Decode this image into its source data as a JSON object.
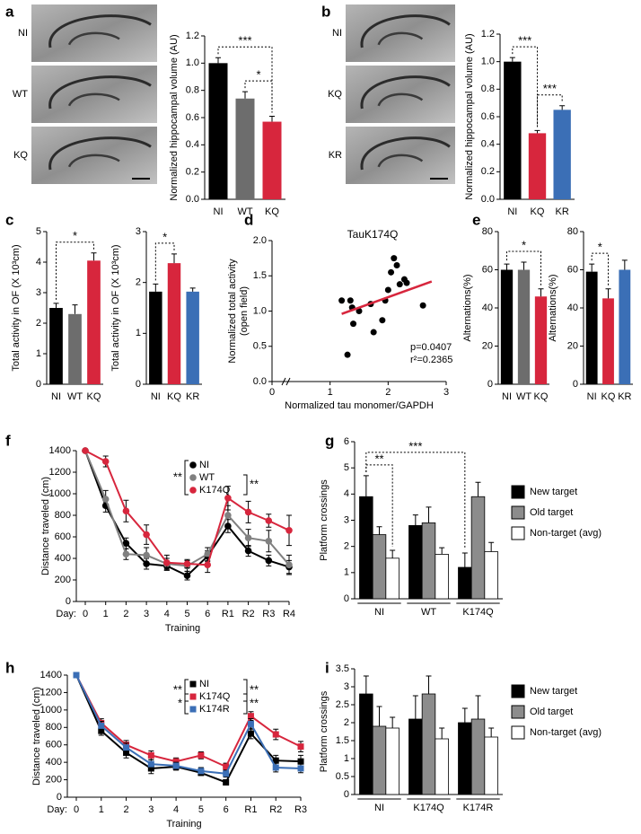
{
  "chart_data": [
    {
      "panel": "a",
      "type": "bar",
      "image_labels": [
        "NI",
        "WT",
        "KQ"
      ],
      "y_label": "Normalized hippocampal volume (AU)",
      "categories": [
        "NI",
        "WT",
        "KQ"
      ],
      "values": [
        1.0,
        0.74,
        0.57
      ],
      "errors": [
        0.04,
        0.05,
        0.04
      ],
      "colors": [
        "#000000",
        "#6d6d6d",
        "#d7263d"
      ],
      "ylim": [
        0,
        1.2
      ],
      "yticks": [
        {
          "value": 0,
          "label": "0.0"
        },
        0.2,
        0.4,
        0.6,
        0.8,
        {
          "value": 1,
          "label": "1.0"
        },
        1.2
      ],
      "significance": [
        {
          "label": "***",
          "between": [
            "NI",
            "KQ"
          ]
        },
        {
          "label": "*",
          "between": [
            "WT",
            "KQ"
          ]
        }
      ]
    },
    {
      "panel": "b",
      "type": "bar",
      "image_labels": [
        "NI",
        "KQ",
        "KR"
      ],
      "y_label": "Normalized hippocampal volume (AU)",
      "categories": [
        "NI",
        "KQ",
        "KR"
      ],
      "values": [
        1.0,
        0.48,
        0.65
      ],
      "errors": [
        0.03,
        0.02,
        0.03
      ],
      "colors": [
        "#000000",
        "#d7263d",
        "#3b6fb6"
      ],
      "ylim": [
        0,
        1.2
      ],
      "yticks": [
        {
          "value": 0,
          "label": "0.0"
        },
        0.2,
        0.4,
        0.6,
        0.8,
        {
          "value": 1,
          "label": "1.0"
        },
        1.2
      ],
      "significance": [
        {
          "label": "***",
          "between": [
            "NI",
            "KQ"
          ]
        },
        {
          "label": "***",
          "between": [
            "KQ",
            "KR"
          ]
        }
      ]
    },
    {
      "panel": "c",
      "type": "bar",
      "y_label": "Total activity in OF (X 10³cm)",
      "categories": [
        "NI",
        "WT",
        "KQ"
      ],
      "values": [
        2.5,
        2.3,
        4.05
      ],
      "errors": [
        0.15,
        0.3,
        0.25
      ],
      "colors": [
        "#000000",
        "#6d6d6d",
        "#d7263d"
      ],
      "ylim": [
        0,
        5
      ],
      "yticks": [
        0,
        1,
        2,
        3,
        4,
        5
      ],
      "significance": [
        {
          "label": "*",
          "between": [
            "NI",
            "KQ"
          ]
        }
      ]
    },
    {
      "type": "bar",
      "y_label": "Total activity in OF (X 10³cm)",
      "categories": [
        "NI",
        "KQ",
        "KR"
      ],
      "values": [
        1.82,
        2.38,
        1.82
      ],
      "errors": [
        0.15,
        0.18,
        0.07
      ],
      "colors": [
        "#000000",
        "#d7263d",
        "#3b6fb6"
      ],
      "ylim": [
        0,
        3
      ],
      "yticks": [
        0,
        1,
        2,
        3
      ],
      "significance": [
        {
          "label": "*",
          "between": [
            "NI",
            "KQ"
          ]
        }
      ]
    },
    {
      "panel": "d",
      "type": "scatter",
      "title": "TauK174Q",
      "x_label": "Normalized tau monomer/GAPDH",
      "y_label": [
        "Normalized total activity",
        "(open field)"
      ],
      "x": [
        1.2,
        1.3,
        1.35,
        1.38,
        1.4,
        1.5,
        1.7,
        1.75,
        1.9,
        1.95,
        2.0,
        2.05,
        2.1,
        2.15,
        2.2,
        2.28,
        2.32,
        2.6
      ],
      "y": [
        1.15,
        0.38,
        1.15,
        1.05,
        0.82,
        1.0,
        1.1,
        0.7,
        0.87,
        1.15,
        1.3,
        1.55,
        1.75,
        1.65,
        1.38,
        1.45,
        1.4,
        1.08
      ],
      "fit": {
        "x": [
          1.2,
          2.75
        ],
        "y": [
          0.96,
          1.42
        ],
        "color": "#d7263d"
      },
      "xlim": [
        0,
        3
      ],
      "xticks": [
        0,
        1,
        2,
        3
      ],
      "ylim": [
        0,
        2
      ],
      "yticks": [
        {
          "value": 0,
          "label": "0.0"
        },
        0.5,
        {
          "value": 1,
          "label": "1.0"
        },
        1.5,
        {
          "value": 2,
          "label": "2.0"
        }
      ],
      "annotations": [
        "p=0.0407",
        "r²=0.2365"
      ]
    },
    {
      "panel": "e",
      "type": "bar",
      "y_label": "Alternations(%)",
      "categories": [
        "NI",
        "WT",
        "KQ"
      ],
      "values": [
        60,
        60,
        46
      ],
      "errors": [
        3,
        4,
        4
      ],
      "colors": [
        "#000000",
        "#6d6d6d",
        "#d7263d"
      ],
      "ylim": [
        0,
        80
      ],
      "yticks": [
        0,
        20,
        40,
        60,
        80
      ],
      "significance": [
        {
          "label": "*",
          "between": [
            "NI",
            "KQ"
          ]
        }
      ]
    },
    {
      "type": "bar",
      "y_label": "Alternations(%)",
      "categories": [
        "NI",
        "KQ",
        "KR"
      ],
      "values": [
        59,
        45,
        60
      ],
      "errors": [
        4,
        5,
        5
      ],
      "colors": [
        "#000000",
        "#d7263d",
        "#3b6fb6"
      ],
      "ylim": [
        0,
        80
      ],
      "yticks": [
        0,
        20,
        40,
        60,
        80
      ],
      "significance": [
        {
          "label": "*",
          "between": [
            "NI",
            "KQ"
          ]
        }
      ]
    },
    {
      "panel": "f",
      "type": "line",
      "y_label": "Distance traveled (cm)",
      "x_prefix": "Day:",
      "x_label": "Training",
      "marker": "circle",
      "categories": [
        "0",
        "1",
        "2",
        "3",
        "4",
        "5",
        "6",
        "R1",
        "R2",
        "R3",
        "R4"
      ],
      "series": [
        {
          "name": "NI",
          "color": "#000000",
          "values": [
            1400,
            890,
            540,
            350,
            330,
            240,
            420,
            700,
            470,
            380,
            320
          ],
          "errors": [
            null,
            60,
            50,
            50,
            40,
            40,
            50,
            60,
            50,
            50,
            60
          ]
        },
        {
          "name": "WT",
          "color": "#808080",
          "values": [
            1400,
            950,
            440,
            430,
            350,
            330,
            440,
            800,
            590,
            560,
            340
          ],
          "errors": [
            null,
            80,
            50,
            70,
            50,
            50,
            60,
            90,
            80,
            100,
            90
          ]
        },
        {
          "name": "K174Q",
          "color": "#d7263d",
          "values": [
            1400,
            1300,
            840,
            620,
            360,
            350,
            340,
            960,
            830,
            750,
            660
          ],
          "errors": [
            null,
            50,
            100,
            90,
            70,
            40,
            70,
            110,
            100,
            60,
            140
          ]
        }
      ],
      "ylim": [
        0,
        1400
      ],
      "yticks": [
        0,
        200,
        400,
        600,
        800,
        1000,
        1200,
        1400
      ],
      "legend_brackets": [
        {
          "label": "**",
          "side": "left",
          "between": [
            "NI",
            "K174Q"
          ]
        },
        {
          "label": "**",
          "side": "right",
          "between": [
            "WT",
            "K174Q"
          ]
        }
      ]
    },
    {
      "panel": "g",
      "type": "bar",
      "y_label": "Platform crossings",
      "categories": [
        "NI",
        "WT",
        "K174Q"
      ],
      "series": [
        {
          "name": "New target",
          "color": "#000000",
          "values": [
            3.9,
            2.8,
            1.2
          ],
          "errors": [
            0.8,
            0.4,
            0.55
          ]
        },
        {
          "name": "Old target",
          "color": "#8c8c8c",
          "values": [
            2.45,
            2.9,
            3.9
          ],
          "errors": [
            0.3,
            0.6,
            0.55
          ]
        },
        {
          "name": "Non-target (avg)",
          "color": "#ffffff",
          "values": [
            1.55,
            1.7,
            1.8
          ],
          "errors": [
            0.3,
            0.25,
            0.35
          ]
        }
      ],
      "ylim": [
        0,
        6
      ],
      "yticks": [
        0,
        1,
        2,
        3,
        4,
        5,
        6
      ],
      "significance": [
        {
          "label": "**",
          "between": [
            [
              "NI",
              "New target"
            ],
            [
              "NI",
              "Non-target (avg)"
            ]
          ]
        },
        {
          "label": "***",
          "between": [
            [
              "NI",
              "New target"
            ],
            [
              "K174Q",
              "New target"
            ]
          ]
        }
      ]
    },
    {
      "panel": "h",
      "type": "line",
      "y_label": "Distance traveled (cm)",
      "x_prefix": "Day:",
      "x_label": "Training",
      "marker": "square",
      "categories": [
        "0",
        "1",
        "2",
        "3",
        "4",
        "5",
        "6",
        "R1",
        "R2",
        "R3"
      ],
      "series": [
        {
          "name": "NI",
          "color": "#000000",
          "values": [
            1400,
            760,
            510,
            330,
            350,
            280,
            170,
            730,
            420,
            410
          ],
          "errors": [
            null,
            50,
            60,
            60,
            40,
            30,
            30,
            60,
            60,
            70
          ]
        },
        {
          "name": "K174Q",
          "color": "#d7263d",
          "values": [
            1400,
            850,
            600,
            480,
            410,
            480,
            350,
            930,
            720,
            580
          ],
          "errors": [
            null,
            50,
            50,
            50,
            40,
            40,
            40,
            50,
            60,
            60
          ]
        },
        {
          "name": "K174R",
          "color": "#3b6fb6",
          "values": [
            1400,
            820,
            570,
            380,
            360,
            300,
            270,
            840,
            340,
            330
          ],
          "errors": [
            null,
            50,
            50,
            50,
            40,
            40,
            40,
            60,
            50,
            50
          ]
        }
      ],
      "ylim": [
        0,
        1400
      ],
      "yticks": [
        0,
        200,
        400,
        600,
        800,
        1000,
        1200,
        1400
      ],
      "legend_brackets": [
        {
          "label": "**",
          "side": "left",
          "between": [
            "NI",
            "K174Q"
          ]
        },
        {
          "label": "**",
          "side": "right",
          "between": [
            "NI",
            "K174Q"
          ]
        },
        {
          "label": "*",
          "side": "left",
          "between": [
            "K174Q",
            "K174R"
          ]
        },
        {
          "label": "**",
          "side": "right",
          "between": [
            "K174Q",
            "K174R"
          ]
        }
      ]
    },
    {
      "panel": "i",
      "type": "bar",
      "y_label": "Platform crossings",
      "categories": [
        "NI",
        "K174Q",
        "K174R"
      ],
      "series": [
        {
          "name": "New target",
          "color": "#000000",
          "values": [
            2.8,
            2.1,
            2.0
          ],
          "errors": [
            0.5,
            0.65,
            0.4
          ]
        },
        {
          "name": "Old target",
          "color": "#8c8c8c",
          "values": [
            1.9,
            2.8,
            2.1
          ],
          "errors": [
            0.55,
            0.5,
            0.65
          ]
        },
        {
          "name": "Non-target (avg)",
          "color": "#ffffff",
          "values": [
            1.85,
            1.55,
            1.6
          ],
          "errors": [
            0.3,
            0.3,
            0.25
          ]
        }
      ],
      "ylim": [
        0,
        3.5
      ],
      "yticks": [
        0,
        0.5,
        1,
        1.5,
        2,
        2.5,
        3,
        3.5
      ]
    }
  ]
}
